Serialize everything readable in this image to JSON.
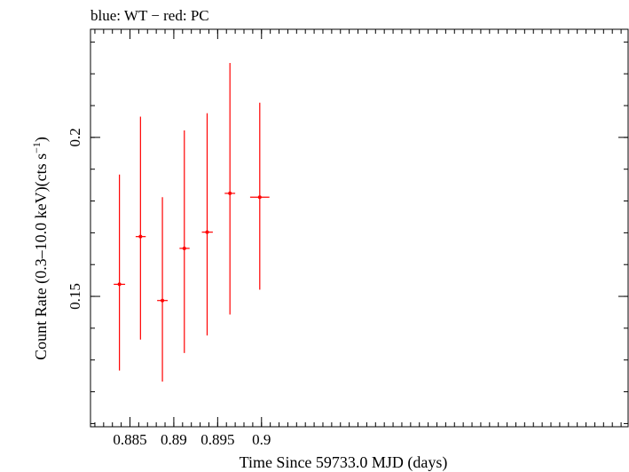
{
  "chart_data": {
    "type": "scatter",
    "title": "blue: WT − red: PC",
    "xlabel": "Time Since 59733.0 MJD (days)",
    "ylabel_main": "Count Rate (0.3–10.0 keV)(cts s",
    "ylabel_sup": "−1",
    "ylabel_end": ")",
    "xlim": [
      0.8805,
      0.9418
    ],
    "ylim": [
      0.109,
      0.234
    ],
    "x_ticks": [
      {
        "value": 0.885,
        "label": "0.885"
      },
      {
        "value": 0.89,
        "label": "0.89"
      },
      {
        "value": 0.895,
        "label": "0.895"
      },
      {
        "value": 0.9,
        "label": "0.9"
      }
    ],
    "y_ticks": [
      {
        "value": 0.15,
        "label": "0.15"
      },
      {
        "value": 0.2,
        "label": "0.2"
      }
    ],
    "x_minor_step": 0.001,
    "y_minor_step": 0.01,
    "grid": false,
    "series": [
      {
        "name": "PC",
        "color": "#ff0000",
        "points": [
          {
            "x": 0.8838,
            "xerr_lo": 0.00065,
            "xerr_hi": 0.00065,
            "y": 0.1538,
            "y_lo": 0.1267,
            "y_hi": 0.1883
          },
          {
            "x": 0.8862,
            "xerr_lo": 0.00055,
            "xerr_hi": 0.0006,
            "y": 0.1688,
            "y_lo": 0.1364,
            "y_hi": 0.2065
          },
          {
            "x": 0.8887,
            "xerr_lo": 0.0006,
            "xerr_hi": 0.0006,
            "y": 0.1487,
            "y_lo": 0.1232,
            "y_hi": 0.1812
          },
          {
            "x": 0.8912,
            "xerr_lo": 0.00055,
            "xerr_hi": 0.0006,
            "y": 0.1651,
            "y_lo": 0.1322,
            "y_hi": 0.2022
          },
          {
            "x": 0.8938,
            "xerr_lo": 0.0006,
            "xerr_hi": 0.00065,
            "y": 0.1702,
            "y_lo": 0.1377,
            "y_hi": 0.2076
          },
          {
            "x": 0.8964,
            "xerr_lo": 0.0006,
            "xerr_hi": 0.0006,
            "y": 0.1824,
            "y_lo": 0.1443,
            "y_hi": 0.2234
          },
          {
            "x": 0.8998,
            "xerr_lo": 0.0011,
            "xerr_hi": 0.0011,
            "y": 0.1812,
            "y_lo": 0.1521,
            "y_hi": 0.2109
          }
        ]
      }
    ]
  }
}
